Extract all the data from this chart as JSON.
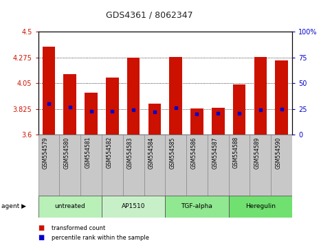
{
  "title": "GDS4361 / 8062347",
  "samples": [
    "GSM554579",
    "GSM554580",
    "GSM554581",
    "GSM554582",
    "GSM554583",
    "GSM554584",
    "GSM554585",
    "GSM554586",
    "GSM554587",
    "GSM554588",
    "GSM554589",
    "GSM554590"
  ],
  "bar_values": [
    4.37,
    4.13,
    3.97,
    4.1,
    4.275,
    3.87,
    4.28,
    3.83,
    3.835,
    4.04,
    4.28,
    4.25
  ],
  "percentile_pct": [
    30,
    27,
    23,
    23,
    24,
    22,
    26,
    20,
    21,
    21,
    24,
    25
  ],
  "groups": [
    {
      "label": "untreated",
      "start": 0,
      "end": 3,
      "color": "#b8f0b8"
    },
    {
      "label": "AP1510",
      "start": 3,
      "end": 6,
      "color": "#c8f0c8"
    },
    {
      "label": "TGF-alpha",
      "start": 6,
      "end": 9,
      "color": "#90e890"
    },
    {
      "label": "Heregulin",
      "start": 9,
      "end": 12,
      "color": "#70e070"
    }
  ],
  "ymin": 3.6,
  "ymax": 4.5,
  "yticks": [
    3.6,
    3.825,
    4.05,
    4.275,
    4.5
  ],
  "ytick_labels": [
    "3.6",
    "3.825",
    "4.05",
    "4.275",
    "4.5"
  ],
  "right_yticks": [
    0,
    25,
    50,
    75,
    100
  ],
  "bar_color": "#cc1100",
  "dot_color": "#0000cc",
  "bar_width": 0.6
}
